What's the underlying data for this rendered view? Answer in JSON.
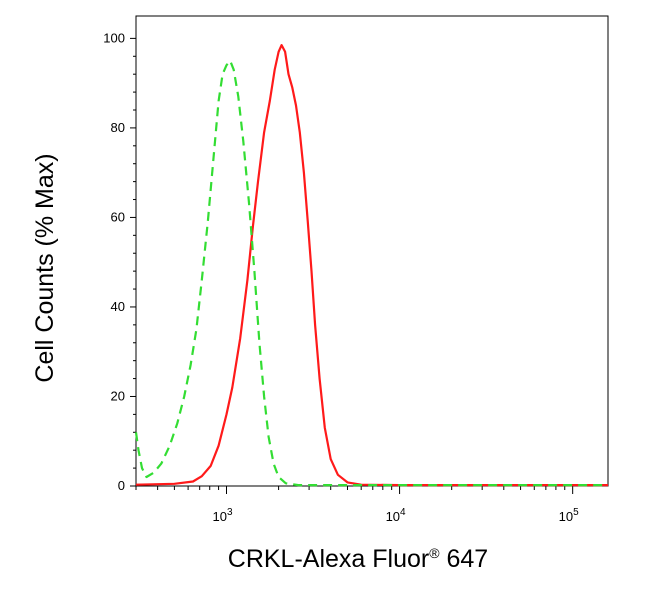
{
  "chart_data": {
    "type": "line",
    "title": "",
    "xlabel": "CRKL-Alexa Fluor",
    "xlabel_superscript": "®",
    "xlabel_suffix": " 647",
    "ylabel": "Cell Counts (% Max)",
    "x_scale": "log",
    "xlim": [
      300,
      160000
    ],
    "ylim": [
      0,
      105
    ],
    "y_ticks": [
      0,
      20,
      40,
      60,
      80,
      100
    ],
    "x_ticks": [
      {
        "value": 1000,
        "base": "10",
        "exp": "3"
      },
      {
        "value": 10000,
        "base": "10",
        "exp": "4"
      },
      {
        "value": 100000,
        "base": "10",
        "exp": "5"
      }
    ],
    "grid": false,
    "legend": "none",
    "series": [
      {
        "color": "#ff1a1a",
        "dash": "solid",
        "points": [
          [
            300,
            0.3
          ],
          [
            500,
            0.5
          ],
          [
            640,
            1.0
          ],
          [
            720,
            2.2
          ],
          [
            810,
            4.5
          ],
          [
            900,
            9
          ],
          [
            1000,
            16
          ],
          [
            1080,
            22
          ],
          [
            1200,
            33
          ],
          [
            1320,
            46
          ],
          [
            1420,
            58
          ],
          [
            1520,
            68
          ],
          [
            1650,
            79
          ],
          [
            1780,
            86
          ],
          [
            1900,
            93
          ],
          [
            2000,
            97
          ],
          [
            2080,
            98.5
          ],
          [
            2180,
            97
          ],
          [
            2280,
            92
          ],
          [
            2400,
            89
          ],
          [
            2520,
            85
          ],
          [
            2650,
            79
          ],
          [
            2800,
            70
          ],
          [
            2950,
            59
          ],
          [
            3100,
            48
          ],
          [
            3250,
            36
          ],
          [
            3450,
            24
          ],
          [
            3700,
            13
          ],
          [
            4000,
            6
          ],
          [
            4400,
            2.5
          ],
          [
            5000,
            0.8
          ],
          [
            6000,
            0.3
          ],
          [
            10000,
            0.2
          ],
          [
            30000,
            0.2
          ],
          [
            160000,
            0.2
          ]
        ]
      },
      {
        "color": "#33dd33",
        "dash": "dashed",
        "points": [
          [
            300,
            12
          ],
          [
            310,
            8
          ],
          [
            325,
            4
          ],
          [
            345,
            2
          ],
          [
            380,
            3
          ],
          [
            420,
            5
          ],
          [
            470,
            9
          ],
          [
            520,
            14
          ],
          [
            570,
            20
          ],
          [
            620,
            27
          ],
          [
            670,
            35
          ],
          [
            720,
            46
          ],
          [
            780,
            59
          ],
          [
            840,
            73
          ],
          [
            900,
            86
          ],
          [
            950,
            92
          ],
          [
            1000,
            94
          ],
          [
            1050,
            95
          ],
          [
            1100,
            93
          ],
          [
            1170,
            87
          ],
          [
            1250,
            77
          ],
          [
            1350,
            63
          ],
          [
            1450,
            48
          ],
          [
            1550,
            32
          ],
          [
            1650,
            20
          ],
          [
            1750,
            11
          ],
          [
            1870,
            5
          ],
          [
            2000,
            2
          ],
          [
            2200,
            0.6
          ],
          [
            2600,
            0.2
          ],
          [
            160000,
            0.2
          ]
        ]
      }
    ]
  }
}
